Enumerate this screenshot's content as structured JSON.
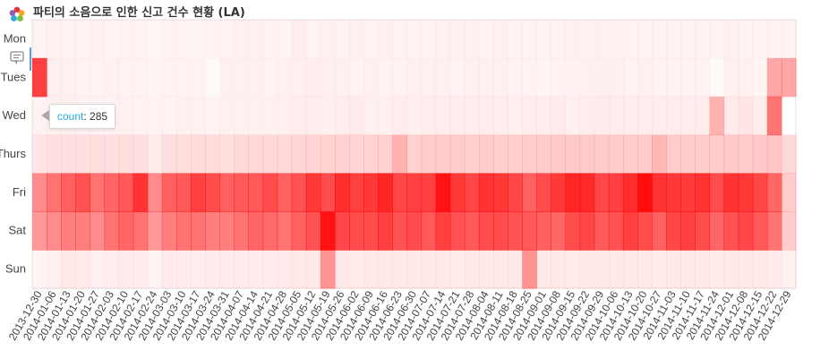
{
  "toolbar": {
    "logo_icon": "bokeh-logo-icon",
    "hover_icon": "hover-tool-icon",
    "active_color": "#5b9bd5"
  },
  "tooltip": {
    "key": "count",
    "separator": ":",
    "value": "285"
  },
  "chart_data": {
    "type": "heatmap",
    "title": "파티의 소음으로 인한 신고 건수 현황 (LA)",
    "color": "#ff0000",
    "days": [
      "Mon",
      "Tues",
      "Wed",
      "Thurs",
      "Fri",
      "Sat",
      "Sun"
    ],
    "weeks": [
      "2013-12-30",
      "2014-01-06",
      "2014-01-13",
      "2014-01-20",
      "2014-01-27",
      "2014-02-03",
      "2014-02-10",
      "2014-02-17",
      "2014-02-24",
      "2014-03-03",
      "2014-03-10",
      "2014-03-17",
      "2014-03-24",
      "2014-03-31",
      "2014-04-07",
      "2014-04-14",
      "2014-04-21",
      "2014-04-28",
      "2014-05-05",
      "2014-05-12",
      "2014-05-19",
      "2014-05-26",
      "2014-06-02",
      "2014-06-09",
      "2014-06-16",
      "2014-06-23",
      "2014-06-30",
      "2014-07-07",
      "2014-07-14",
      "2014-07-21",
      "2014-07-28",
      "2014-08-04",
      "2014-08-11",
      "2014-08-18",
      "2014-08-25",
      "2014-09-01",
      "2014-09-08",
      "2014-09-15",
      "2014-09-22",
      "2014-09-29",
      "2014-10-06",
      "2014-10-13",
      "2014-10-20",
      "2014-10-27",
      "2014-11-03",
      "2014-11-10",
      "2014-11-17",
      "2014-11-24",
      "2014-12-01",
      "2014-12-08",
      "2014-12-15",
      "2014-12-22",
      "2014-12-29"
    ],
    "intensity": {
      "Mon": [
        0.05,
        0.06,
        0.05,
        0.05,
        0.06,
        0.04,
        0.05,
        0.05,
        0.03,
        0.05,
        0.05,
        0.04,
        0.05,
        0.05,
        0.06,
        0.06,
        0.05,
        0.04,
        0.07,
        0.05,
        0.06,
        0.05,
        0.06,
        0.05,
        0.06,
        0.05,
        0.05,
        0.05,
        0.06,
        0.06,
        0.06,
        0.05,
        0.06,
        0.05,
        0.05,
        0.05,
        0.05,
        0.06,
        0.05,
        0.06,
        0.05,
        0.05,
        0.05,
        0.05,
        0.05,
        0.05,
        0.05,
        0.05,
        0.06,
        0.05,
        0.05,
        0.05,
        0.05
      ],
      "Tues": [
        0.75,
        0.06,
        0.06,
        0.05,
        0.05,
        0.06,
        0.05,
        0.05,
        0.04,
        0.05,
        0.05,
        0.05,
        0.02,
        0.06,
        0.06,
        0.06,
        0.05,
        0.06,
        0.06,
        0.07,
        0.06,
        0.06,
        0.05,
        0.06,
        0.05,
        0.05,
        0.06,
        0.06,
        0.06,
        0.05,
        0.06,
        0.06,
        0.06,
        0.05,
        0.05,
        0.04,
        0.05,
        0.05,
        0.06,
        0.06,
        0.06,
        0.05,
        0.06,
        0.05,
        0.05,
        0.05,
        0.05,
        0.02,
        0.06,
        0.06,
        0.04,
        0.35,
        0.35
      ],
      "Wed": [
        0.05,
        0.06,
        0.06,
        0.05,
        0.05,
        0.05,
        0.06,
        0.05,
        0.05,
        0.05,
        0.06,
        0.06,
        0.05,
        0.06,
        0.06,
        0.06,
        0.06,
        0.06,
        0.07,
        0.07,
        0.06,
        0.07,
        0.08,
        0.06,
        0.06,
        0.07,
        0.06,
        0.07,
        0.07,
        0.07,
        0.07,
        0.07,
        0.07,
        0.06,
        0.07,
        0.07,
        0.08,
        0.06,
        0.07,
        0.08,
        0.07,
        0.07,
        0.07,
        0.07,
        0.07,
        0.07,
        0.07,
        0.3,
        0.08,
        0.1,
        0.07,
        0.55,
        0.0
      ],
      "Thurs": [
        0.1,
        0.12,
        0.12,
        0.12,
        0.13,
        0.12,
        0.13,
        0.12,
        0.08,
        0.13,
        0.13,
        0.14,
        0.14,
        0.13,
        0.15,
        0.15,
        0.15,
        0.15,
        0.16,
        0.17,
        0.18,
        0.18,
        0.17,
        0.18,
        0.18,
        0.3,
        0.18,
        0.2,
        0.2,
        0.2,
        0.19,
        0.2,
        0.19,
        0.19,
        0.2,
        0.2,
        0.21,
        0.21,
        0.21,
        0.2,
        0.2,
        0.2,
        0.2,
        0.28,
        0.2,
        0.2,
        0.2,
        0.2,
        0.21,
        0.2,
        0.21,
        0.22,
        0.15
      ],
      "Fri": [
        0.45,
        0.55,
        0.62,
        0.68,
        0.55,
        0.6,
        0.65,
        0.8,
        0.45,
        0.62,
        0.65,
        0.75,
        0.7,
        0.62,
        0.65,
        0.65,
        0.7,
        0.62,
        0.68,
        0.78,
        0.7,
        0.82,
        0.75,
        0.78,
        0.85,
        0.72,
        0.75,
        0.75,
        0.93,
        0.78,
        0.72,
        0.8,
        0.78,
        0.72,
        0.62,
        0.7,
        0.78,
        0.85,
        0.83,
        0.72,
        0.75,
        0.82,
        0.95,
        0.8,
        0.78,
        0.77,
        0.8,
        0.7,
        0.8,
        0.78,
        0.72,
        0.6,
        0.2
      ],
      "Sat": [
        0.4,
        0.45,
        0.5,
        0.5,
        0.45,
        0.55,
        0.6,
        0.55,
        0.4,
        0.5,
        0.55,
        0.55,
        0.5,
        0.5,
        0.55,
        0.6,
        0.58,
        0.55,
        0.62,
        0.68,
        0.93,
        0.72,
        0.7,
        0.7,
        0.75,
        0.68,
        0.7,
        0.65,
        0.75,
        0.68,
        0.65,
        0.7,
        0.7,
        0.68,
        0.65,
        0.62,
        0.6,
        0.7,
        0.72,
        0.65,
        0.68,
        0.75,
        0.7,
        0.62,
        0.72,
        0.75,
        0.7,
        0.6,
        0.68,
        0.72,
        0.65,
        0.55,
        0.2
      ],
      "Sun": [
        0.04,
        0.06,
        0.09,
        0.08,
        0.06,
        0.07,
        0.08,
        0.08,
        0.05,
        0.08,
        0.08,
        0.07,
        0.08,
        0.08,
        0.08,
        0.08,
        0.08,
        0.08,
        0.09,
        0.09,
        0.42,
        0.09,
        0.08,
        0.09,
        0.09,
        0.09,
        0.09,
        0.09,
        0.09,
        0.08,
        0.09,
        0.09,
        0.09,
        0.09,
        0.42,
        0.09,
        0.09,
        0.08,
        0.09,
        0.09,
        0.09,
        0.09,
        0.09,
        0.08,
        0.09,
        0.09,
        0.09,
        0.08,
        0.09,
        0.09,
        0.09,
        0.08,
        0.06
      ]
    },
    "highlight": {
      "day": "Wed",
      "week": "2013-12-30",
      "count": 285
    },
    "grid": false,
    "legend": "none",
    "xlabel": "",
    "ylabel": ""
  }
}
